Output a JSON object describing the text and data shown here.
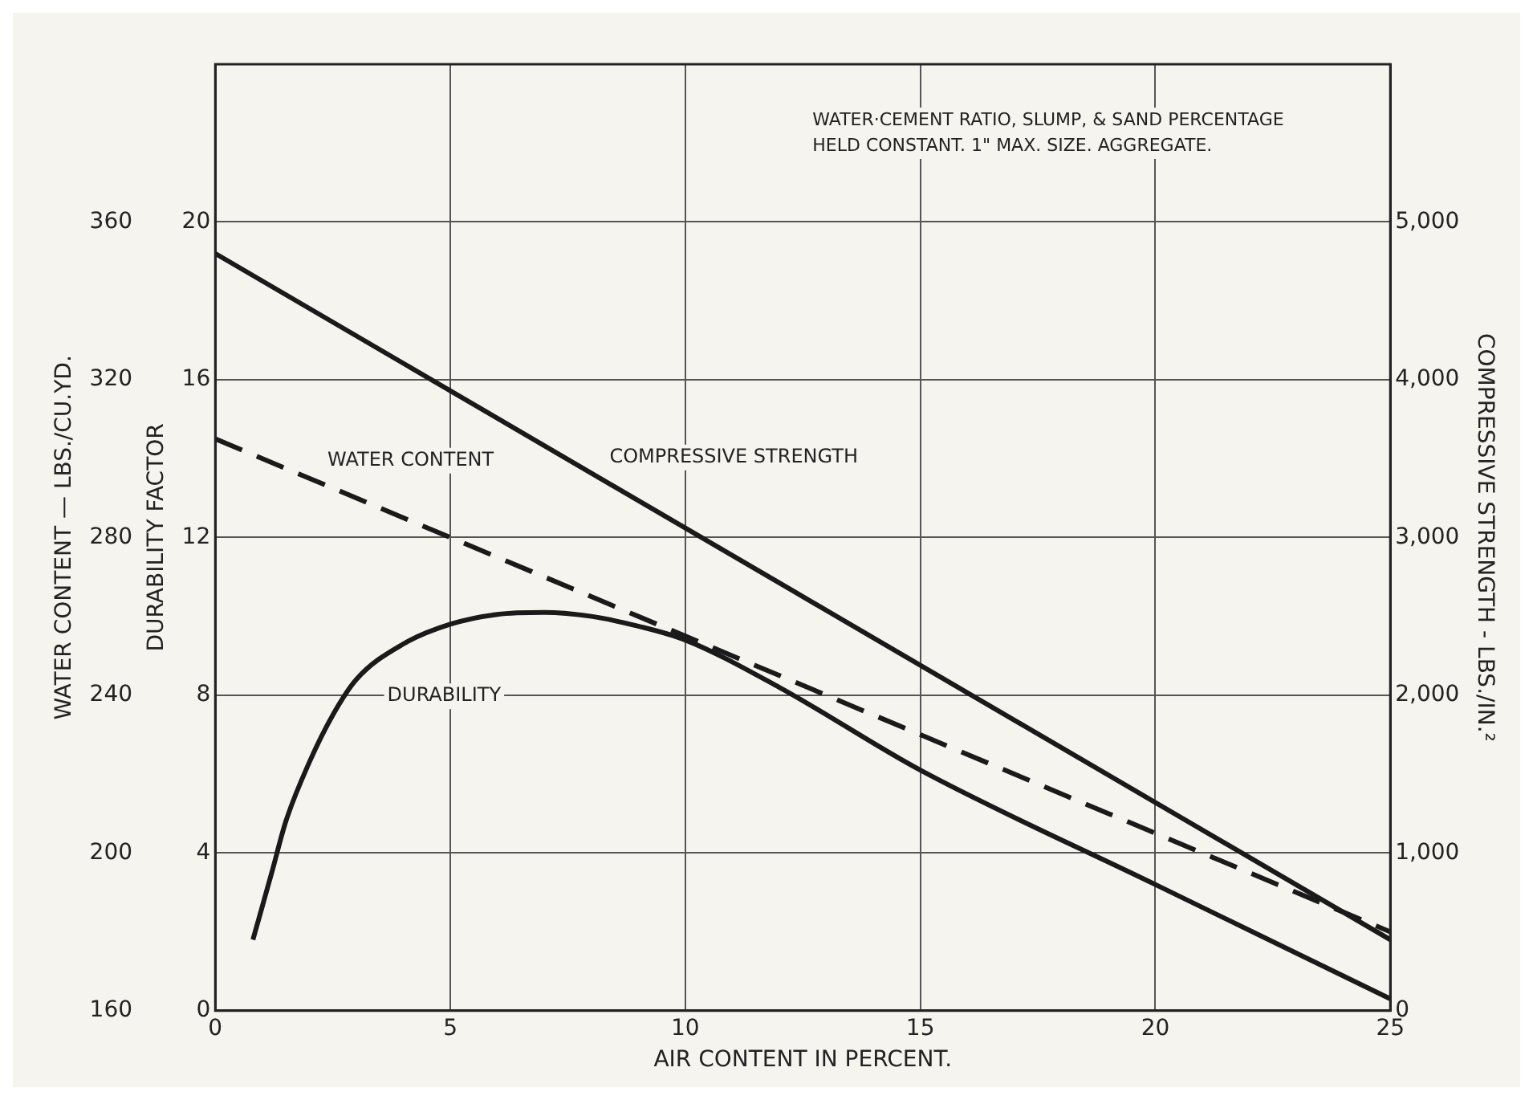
{
  "chart_data": {
    "type": "line",
    "xlabel": "AIR CONTENT IN PERCENT.",
    "ylabel": "DURABILITY FACTOR",
    "y2label": "COMPRESSIVE STRENGTH - LBS./IN.²",
    "y3label": "WATER CONTENT — LBS./CU.YD.",
    "xlim": [
      0,
      25
    ],
    "xticks": [
      0,
      5,
      10,
      15,
      20,
      25
    ],
    "ylim": [
      0,
      24
    ],
    "yticks": [
      0,
      4,
      8,
      12,
      16,
      20
    ],
    "y2lim": [
      0,
      6000
    ],
    "y2ticks": [
      0,
      {
        "value": 1000,
        "label": "1,000"
      },
      {
        "value": 2000,
        "label": "2,000"
      },
      {
        "value": 3000,
        "label": "3,000"
      },
      {
        "value": 4000,
        "label": "4,000"
      },
      {
        "value": 5000,
        "label": "5,000"
      }
    ],
    "y3lim": [
      160,
      400
    ],
    "y3ticks": [
      160,
      200,
      240,
      280,
      320,
      360
    ],
    "grid": true,
    "legend": false,
    "annotations": [
      "WATER·CEMENT RATIO, SLUMP, & SAND PERCENTAGE HELD CONSTANT. 1\" MAX. SIZE. AGGREGATE."
    ],
    "series": [
      {
        "name": "COMPRESSIVE STRENGTH",
        "color": "#1a1a1a",
        "axis": "y2",
        "line_style": "solid",
        "x": [
          0,
          25
        ],
        "values": [
          4800,
          450
        ]
      },
      {
        "name": "WATER CONTENT",
        "color": "#1a1a1a",
        "axis": "y3",
        "line_style": "dashed",
        "x": [
          0,
          25
        ],
        "values": [
          305,
          180
        ]
      },
      {
        "name": "DURABILITY",
        "color": "#1a1a1a",
        "axis": "y",
        "line_style": "solid",
        "x": [
          0.8,
          1.2,
          1.5,
          2,
          2.5,
          3,
          4,
          5,
          6,
          7,
          8,
          9,
          10,
          12,
          15,
          20,
          25
        ],
        "values": [
          1.8,
          3.5,
          4.8,
          6.3,
          7.5,
          8.4,
          9.3,
          9.8,
          10.05,
          10.1,
          10,
          9.75,
          9.4,
          8.2,
          6.1,
          3.2,
          0.3
        ]
      }
    ]
  }
}
